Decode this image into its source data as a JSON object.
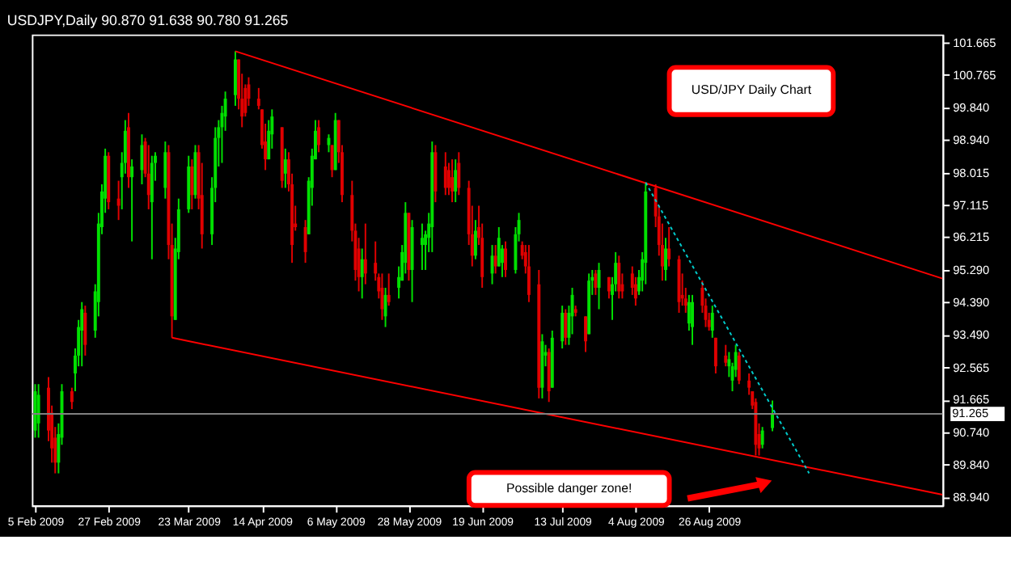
{
  "chart_data": {
    "type": "candlestick",
    "title": "USDJPY,Daily  90.870 91.638 90.780 91.265",
    "annotations": [
      "USD/JPY Daily Chart",
      "Possible danger zone!"
    ],
    "x": [
      "2009-02-05",
      "2009-02-06",
      "2009-02-09",
      "2009-02-10",
      "2009-02-11",
      "2009-02-12",
      "2009-02-13",
      "2009-02-16",
      "2009-02-17",
      "2009-02-18",
      "2009-02-19",
      "2009-02-20",
      "2009-02-23",
      "2009-02-24",
      "2009-02-25",
      "2009-02-26",
      "2009-02-27",
      "2009-03-02",
      "2009-03-03",
      "2009-03-04",
      "2009-03-05",
      "2009-03-06",
      "2009-03-09",
      "2009-03-10",
      "2009-03-11",
      "2009-03-12",
      "2009-03-13",
      "2009-03-16",
      "2009-03-17",
      "2009-03-18",
      "2009-03-19",
      "2009-03-20",
      "2009-03-23",
      "2009-03-24",
      "2009-03-25",
      "2009-03-26",
      "2009-03-27",
      "2009-03-30",
      "2009-03-31",
      "2009-04-01",
      "2009-04-02",
      "2009-04-03",
      "2009-04-06",
      "2009-04-07",
      "2009-04-08",
      "2009-04-09",
      "2009-04-10",
      "2009-04-13",
      "2009-04-14",
      "2009-04-15",
      "2009-04-16",
      "2009-04-17",
      "2009-04-20",
      "2009-04-21",
      "2009-04-22",
      "2009-04-23",
      "2009-04-24",
      "2009-04-27",
      "2009-04-28",
      "2009-04-29",
      "2009-04-30",
      "2009-05-01",
      "2009-05-04",
      "2009-05-05",
      "2009-05-06",
      "2009-05-07",
      "2009-05-08",
      "2009-05-11",
      "2009-05-12",
      "2009-05-13",
      "2009-05-14",
      "2009-05-15",
      "2009-05-18",
      "2009-05-19",
      "2009-05-20",
      "2009-05-21",
      "2009-05-22",
      "2009-05-25",
      "2009-05-26",
      "2009-05-27",
      "2009-05-28",
      "2009-05-29",
      "2009-06-01",
      "2009-06-02",
      "2009-06-03",
      "2009-06-04",
      "2009-06-05",
      "2009-06-08",
      "2009-06-09",
      "2009-06-10",
      "2009-06-11",
      "2009-06-12",
      "2009-06-15",
      "2009-06-16",
      "2009-06-17",
      "2009-06-18",
      "2009-06-19",
      "2009-06-22",
      "2009-06-23",
      "2009-06-24",
      "2009-06-25",
      "2009-06-26",
      "2009-06-29",
      "2009-06-30",
      "2009-07-01",
      "2009-07-02",
      "2009-07-03",
      "2009-07-06",
      "2009-07-07",
      "2009-07-08",
      "2009-07-09",
      "2009-07-10",
      "2009-07-13",
      "2009-07-14",
      "2009-07-15",
      "2009-07-16",
      "2009-07-17",
      "2009-07-20",
      "2009-07-21",
      "2009-07-22",
      "2009-07-23",
      "2009-07-24",
      "2009-07-27",
      "2009-07-28",
      "2009-07-29",
      "2009-07-30",
      "2009-07-31",
      "2009-08-03",
      "2009-08-04",
      "2009-08-05",
      "2009-08-06",
      "2009-08-07",
      "2009-08-10",
      "2009-08-11",
      "2009-08-12",
      "2009-08-13",
      "2009-08-14",
      "2009-08-17",
      "2009-08-18",
      "2009-08-19",
      "2009-08-20",
      "2009-08-21",
      "2009-08-24",
      "2009-08-25",
      "2009-08-26",
      "2009-08-27",
      "2009-08-28",
      "2009-08-31",
      "2009-09-01",
      "2009-09-02",
      "2009-09-03",
      "2009-09-04",
      "2009-09-07",
      "2009-09-08",
      "2009-09-09",
      "2009-09-10",
      "2009-09-11",
      "2009-09-14"
    ],
    "ohlc": [
      [
        90.8,
        92.1,
        90.6,
        91.9
      ],
      [
        91.0,
        92.1,
        90.6,
        91.8
      ],
      [
        92.0,
        92.3,
        90.5,
        90.8
      ],
      [
        91.3,
        91.5,
        89.9,
        90.3
      ],
      [
        90.6,
        90.9,
        89.6,
        89.9
      ],
      [
        89.9,
        91.0,
        89.6,
        90.7
      ],
      [
        90.6,
        92.1,
        90.4,
        91.9
      ],
      [
        91.9,
        92.0,
        91.4,
        91.6
      ],
      [
        92.4,
        93.1,
        91.9,
        92.9
      ],
      [
        92.9,
        93.9,
        92.6,
        93.7
      ],
      [
        93.6,
        94.4,
        92.6,
        94.2
      ],
      [
        94.1,
        94.3,
        92.9,
        93.2
      ],
      [
        93.6,
        94.9,
        93.4,
        94.7
      ],
      [
        94.4,
        96.9,
        94.0,
        96.6
      ],
      [
        96.5,
        97.7,
        96.3,
        97.5
      ],
      [
        97.3,
        98.7,
        96.9,
        98.5
      ],
      [
        98.5,
        98.6,
        97.0,
        97.2
      ],
      [
        97.3,
        97.8,
        96.7,
        97.1
      ],
      [
        97.9,
        98.6,
        97.0,
        98.3
      ],
      [
        98.3,
        99.5,
        98.0,
        99.2
      ],
      [
        99.3,
        99.7,
        97.6,
        97.9
      ],
      [
        97.9,
        98.4,
        96.1,
        98.2
      ],
      [
        98.1,
        99.1,
        97.7,
        98.8
      ],
      [
        98.9,
        99.0,
        97.9,
        98.0
      ],
      [
        98.0,
        98.8,
        97.0,
        97.4
      ],
      [
        97.2,
        98.5,
        95.6,
        98.3
      ],
      [
        98.3,
        98.6,
        97.8,
        98.5
      ],
      [
        97.6,
        98.9,
        97.3,
        98.6
      ],
      [
        98.6,
        98.8,
        95.6,
        96.0
      ],
      [
        96.0,
        96.6,
        93.4,
        94.0
      ],
      [
        93.9,
        96.2,
        93.9,
        95.9
      ],
      [
        95.8,
        97.3,
        95.6,
        97.0
      ],
      [
        97.0,
        98.5,
        96.9,
        98.2
      ],
      [
        98.2,
        98.4,
        97.0,
        97.4
      ],
      [
        97.4,
        98.8,
        97.3,
        98.6
      ],
      [
        98.6,
        98.8,
        97.0,
        97.3
      ],
      [
        97.4,
        98.3,
        95.9,
        96.3
      ],
      [
        96.3,
        97.9,
        96.0,
        97.6
      ],
      [
        97.6,
        99.3,
        97.2,
        99.0
      ],
      [
        99.0,
        99.5,
        98.2,
        99.3
      ],
      [
        99.3,
        99.9,
        98.3,
        99.7
      ],
      [
        99.6,
        100.3,
        99.2,
        100.1
      ],
      [
        100.2,
        101.43,
        99.9,
        101.2
      ],
      [
        101.2,
        101.2,
        99.8,
        100.1
      ],
      [
        100.1,
        100.8,
        99.3,
        99.6
      ],
      [
        100.4,
        100.5,
        99.6,
        99.7
      ],
      [
        100.5,
        100.7,
        99.9,
        100.1
      ],
      [
        100.1,
        100.4,
        99.8,
        99.9
      ],
      [
        99.8,
        99.8,
        98.7,
        98.8
      ],
      [
        98.9,
        99.4,
        98.1,
        98.4
      ],
      [
        98.4,
        99.5,
        98.4,
        99.2
      ],
      [
        99.1,
        99.8,
        98.7,
        99.6
      ],
      [
        99.3,
        99.3,
        97.6,
        97.8
      ],
      [
        98.0,
        98.7,
        97.6,
        98.4
      ],
      [
        98.4,
        98.6,
        97.5,
        97.7
      ],
      [
        97.7,
        98.0,
        95.5,
        96.0
      ],
      [
        96.6,
        97.1,
        96.4,
        96.5
      ],
      [
        96.5,
        96.7,
        95.5,
        95.8
      ],
      [
        96.3,
        97.9,
        96.3,
        97.8
      ],
      [
        97.6,
        98.7,
        97.1,
        98.5
      ],
      [
        98.4,
        99.5,
        98.4,
        99.2
      ],
      [
        99.3,
        99.5,
        98.6,
        98.8
      ],
      [
        98.8,
        99.1,
        98.6,
        99.0
      ],
      [
        98.8,
        98.8,
        97.9,
        98.1
      ],
      [
        98.1,
        99.7,
        98.1,
        99.5
      ],
      [
        99.5,
        99.5,
        98.3,
        98.6
      ],
      [
        98.6,
        98.8,
        97.2,
        97.4
      ],
      [
        97.4,
        97.8,
        96.1,
        96.4
      ],
      [
        96.4,
        96.6,
        95.0,
        95.3
      ],
      [
        95.9,
        96.2,
        94.7,
        95.1
      ],
      [
        95.1,
        95.9,
        94.5,
        95.6
      ],
      [
        95.6,
        96.6,
        94.9,
        95.2
      ],
      [
        95.5,
        96.1,
        95.0,
        95.2
      ],
      [
        95.1,
        95.2,
        94.5,
        94.7
      ],
      [
        94.8,
        95.2,
        93.9,
        94.2
      ],
      [
        94.0,
        94.8,
        93.7,
        94.6
      ],
      [
        94.6,
        95.2,
        94.3,
        94.4
      ],
      [
        94.8,
        95.4,
        94.5,
        95.1
      ],
      [
        95.0,
        96.0,
        95.0,
        95.8
      ],
      [
        95.5,
        97.2,
        95.2,
        96.9
      ],
      [
        96.9,
        96.9,
        95.0,
        95.3
      ],
      [
        95.3,
        96.7,
        94.4,
        96.5
      ],
      [
        96.0,
        96.6,
        95.3,
        96.2
      ],
      [
        96.0,
        96.4,
        95.3,
        96.3
      ],
      [
        96.2,
        96.9,
        95.8,
        96.6
      ],
      [
        96.5,
        98.9,
        95.8,
        98.6
      ],
      [
        98.6,
        98.8,
        97.2,
        97.5
      ],
      [
        98.2,
        98.6,
        97.4,
        97.6
      ],
      [
        98.1,
        98.3,
        97.4,
        97.6
      ],
      [
        97.9,
        98.4,
        97.2,
        97.5
      ],
      [
        97.5,
        98.4,
        97.2,
        98.1
      ],
      [
        98.3,
        98.6,
        97.4,
        97.6
      ],
      [
        97.6,
        97.8,
        96.0,
        96.3
      ],
      [
        96.3,
        97.1,
        95.4,
        95.7
      ],
      [
        95.7,
        96.7,
        95.6,
        96.4
      ],
      [
        96.5,
        97.1,
        96.0,
        96.2
      ],
      [
        96.2,
        96.6,
        94.8,
        95.1
      ],
      [
        95.2,
        96.0,
        94.9,
        95.7
      ],
      [
        95.7,
        96.0,
        95.2,
        95.4
      ],
      [
        95.4,
        96.5,
        95.4,
        96.2
      ],
      [
        95.5,
        96.0,
        95.1,
        95.9
      ],
      [
        95.9,
        96.1,
        95.1,
        95.3
      ],
      [
        95.3,
        96.5,
        95.2,
        96.3
      ],
      [
        96.3,
        96.9,
        96.1,
        96.7
      ],
      [
        96.0,
        96.1,
        95.6,
        95.7
      ],
      [
        95.8,
        96.0,
        95.2,
        95.4
      ],
      [
        95.4,
        96.0,
        94.4,
        94.6
      ],
      [
        94.9,
        95.3,
        91.7,
        92.0
      ],
      [
        92.0,
        93.5,
        91.7,
        93.3
      ],
      [
        92.9,
        93.2,
        92.6,
        93.0
      ],
      [
        93.0,
        93.1,
        91.6,
        91.9
      ],
      [
        92.0,
        93.6,
        92.0,
        93.4
      ],
      [
        93.3,
        94.3,
        93.1,
        94.1
      ],
      [
        94.1,
        94.2,
        93.2,
        93.4
      ],
      [
        93.4,
        94.3,
        93.2,
        94.1
      ],
      [
        94.0,
        94.8,
        93.5,
        94.6
      ],
      [
        94.2,
        94.3,
        94.0,
        94.1
      ],
      [
        94.0,
        94.0,
        93.0,
        93.3
      ],
      [
        93.5,
        95.2,
        93.5,
        95.0
      ],
      [
        95.0,
        95.3,
        94.6,
        95.1
      ],
      [
        95.2,
        95.3,
        94.6,
        94.8
      ],
      [
        94.8,
        95.5,
        94.2,
        95.3
      ],
      [
        95.1,
        95.1,
        94.5,
        94.7
      ],
      [
        94.6,
        95.1,
        93.9,
        94.9
      ],
      [
        94.9,
        95.8,
        94.7,
        95.5
      ],
      [
        95.5,
        95.7,
        94.5,
        94.7
      ],
      [
        94.9,
        95.2,
        94.5,
        94.7
      ],
      [
        95.2,
        95.4,
        94.6,
        94.8
      ],
      [
        94.9,
        95.1,
        94.3,
        94.5
      ],
      [
        94.7,
        95.3,
        94.6,
        95.1
      ],
      [
        95.0,
        95.8,
        94.7,
        95.6
      ],
      [
        95.5,
        97.75,
        94.9,
        97.5
      ],
      [
        97.6,
        97.7,
        96.5,
        96.8
      ],
      [
        96.8,
        97.1,
        95.7,
        96.0
      ],
      [
        96.0,
        96.6,
        95.0,
        95.4
      ],
      [
        95.3,
        96.2,
        95.0,
        95.9
      ],
      [
        95.9,
        96.5,
        95.4,
        95.6
      ],
      [
        95.6,
        95.7,
        94.1,
        94.4
      ],
      [
        94.6,
        95.2,
        94.3,
        94.5
      ],
      [
        94.5,
        94.8,
        94.1,
        94.3
      ],
      [
        93.8,
        94.6,
        93.6,
        94.4
      ],
      [
        93.7,
        94.6,
        93.2,
        94.4
      ],
      [
        94.8,
        95.0,
        94.1,
        94.3
      ],
      [
        94.3,
        94.5,
        93.7,
        93.9
      ],
      [
        93.9,
        94.1,
        93.6,
        93.7
      ],
      [
        93.6,
        94.3,
        93.4,
        94.1
      ],
      [
        93.4,
        93.4,
        92.4,
        92.6
      ],
      [
        92.9,
        93.2,
        92.6,
        92.7
      ],
      [
        92.6,
        93.0,
        92.3,
        92.8
      ],
      [
        92.2,
        92.7,
        91.9,
        92.6
      ],
      [
        92.5,
        93.2,
        92.3,
        93.0
      ],
      [
        92.9,
        93.0,
        92.1,
        92.2
      ],
      [
        92.2,
        92.4,
        91.8,
        92.0
      ],
      [
        91.9,
        91.9,
        91.4,
        91.5
      ],
      [
        91.6,
        91.7,
        90.1,
        90.4
      ],
      [
        90.7,
        91.0,
        90.1,
        90.3
      ],
      [
        90.4,
        90.9,
        90.3,
        90.8
      ],
      [
        90.87,
        91.638,
        90.78,
        91.265
      ]
    ],
    "colors": [
      "#00e000",
      "#00e000",
      "#e00000",
      "#e00000",
      "#e00000",
      "#00e000",
      "#00e000",
      "#e00000",
      "#00e000",
      "#00e000",
      "#00e000",
      "#e00000",
      "#00e000",
      "#00e000",
      "#00e000",
      "#00e000",
      "#e00000",
      "#e00000",
      "#00e000",
      "#00e000",
      "#e00000",
      "#00e000",
      "#00e000",
      "#e00000",
      "#e00000",
      "#00e000",
      "#00e000",
      "#00e000",
      "#e00000",
      "#e00000",
      "#00e000",
      "#00e000",
      "#00e000",
      "#e00000",
      "#00e000",
      "#e00000",
      "#e00000",
      "#00e000",
      "#00e000",
      "#00e000",
      "#00e000",
      "#00e000",
      "#00e000",
      "#e00000",
      "#e00000",
      "#e00000",
      "#e00000",
      "#e00000",
      "#e00000",
      "#e00000",
      "#00e000",
      "#00e000",
      "#e00000",
      "#00e000",
      "#e00000",
      "#e00000",
      "#e00000",
      "#e00000",
      "#00e000",
      "#00e000",
      "#00e000",
      "#e00000",
      "#00e000",
      "#e00000",
      "#00e000",
      "#e00000",
      "#e00000",
      "#e00000",
      "#e00000",
      "#e00000",
      "#00e000",
      "#e00000",
      "#e00000",
      "#e00000",
      "#e00000",
      "#00e000",
      "#e00000",
      "#00e000",
      "#00e000",
      "#00e000",
      "#e00000",
      "#00e000",
      "#00e000",
      "#00e000",
      "#00e000",
      "#00e000",
      "#e00000",
      "#e00000",
      "#e00000",
      "#e00000",
      "#00e000",
      "#e00000",
      "#e00000",
      "#e00000",
      "#00e000",
      "#e00000",
      "#e00000",
      "#00e000",
      "#e00000",
      "#00e000",
      "#00e000",
      "#e00000",
      "#00e000",
      "#00e000",
      "#e00000",
      "#e00000",
      "#e00000",
      "#e00000",
      "#00e000",
      "#00e000",
      "#e00000",
      "#00e000",
      "#00e000",
      "#e00000",
      "#00e000",
      "#00e000",
      "#e00000",
      "#e00000",
      "#00e000",
      "#00e000",
      "#e00000",
      "#00e000",
      "#e00000",
      "#00e000",
      "#00e000",
      "#e00000",
      "#e00000",
      "#e00000",
      "#e00000",
      "#00e000",
      "#00e000",
      "#00e000",
      "#e00000",
      "#e00000",
      "#e00000",
      "#00e000",
      "#e00000",
      "#e00000",
      "#e00000",
      "#e00000",
      "#00e000",
      "#00e000",
      "#e00000",
      "#e00000",
      "#e00000",
      "#00e000",
      "#e00000",
      "#e00000",
      "#00e000",
      "#00e000",
      "#00e000",
      "#e00000",
      "#e00000",
      "#e00000",
      "#e00000",
      "#e00000",
      "#00e000",
      "#00e000"
    ],
    "series": [
      {
        "type": "line",
        "color": "#ff0000",
        "line_style": "solid",
        "x": [
          "2009-04-06",
          "2009-11-04"
        ],
        "values": [
          101.43,
          95.06
        ]
      },
      {
        "type": "line",
        "color": "#ff0000",
        "line_style": "solid",
        "x": [
          "2009-03-18",
          "2009-11-04"
        ],
        "values": [
          93.4,
          89.0
        ]
      },
      {
        "type": "line",
        "color": "#00cccc",
        "line_style": "dotted",
        "x": [
          "2009-08-07",
          "2009-09-25"
        ],
        "values": [
          97.75,
          89.6
        ]
      }
    ],
    "ref_lines": [
      {
        "axis": "y",
        "value": 91.265,
        "label": "91.265",
        "color": "#808080"
      }
    ],
    "xlim": [
      "2009-02-04",
      "2009-11-04"
    ],
    "xticks": [
      {
        "value": "2009-02-05",
        "label": "5 Feb 2009"
      },
      {
        "value": "2009-02-27",
        "label": "27 Feb 2009"
      },
      {
        "value": "2009-03-23",
        "label": "23 Mar 2009"
      },
      {
        "value": "2009-04-14",
        "label": "14 Apr 2009"
      },
      {
        "value": "2009-05-06",
        "label": "6 May 2009"
      },
      {
        "value": "2009-05-28",
        "label": "28 May 2009"
      },
      {
        "value": "2009-06-19",
        "label": "19 Jun 2009"
      },
      {
        "value": "2009-07-13",
        "label": "13 Jul 2009"
      },
      {
        "value": "2009-08-04",
        "label": "4 Aug 2009"
      },
      {
        "value": "2009-08-26",
        "label": "26 Aug 2009"
      }
    ],
    "ylim": [
      88.7,
      101.9
    ],
    "yticks": [
      {
        "value": 101.665,
        "label": "101.665"
      },
      {
        "value": 100.765,
        "label": "100.765"
      },
      {
        "value": 99.84,
        "label": "99.840"
      },
      {
        "value": 98.94,
        "label": "98.940"
      },
      {
        "value": 98.015,
        "label": "98.015"
      },
      {
        "value": 97.115,
        "label": "97.115"
      },
      {
        "value": 96.215,
        "label": "96.215"
      },
      {
        "value": 95.29,
        "label": "95.290"
      },
      {
        "value": 94.39,
        "label": "94.390"
      },
      {
        "value": 93.49,
        "label": "93.490"
      },
      {
        "value": 92.565,
        "label": "92.565"
      },
      {
        "value": 91.665,
        "label": "91.665"
      },
      {
        "value": 90.74,
        "label": "90.740"
      },
      {
        "value": 89.84,
        "label": "89.840"
      },
      {
        "value": 88.94,
        "label": "88.940"
      }
    ],
    "grid": false
  }
}
